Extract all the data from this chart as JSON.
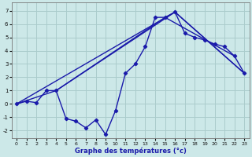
{
  "xlabel": "Graphe des températures (°c)",
  "bg_color": "#cce8e8",
  "grid_color": "#aacccc",
  "line_color": "#1a1aaa",
  "xlim": [
    -0.5,
    23.5
  ],
  "ylim": [
    -2.6,
    7.6
  ],
  "yticks": [
    -2,
    -1,
    0,
    1,
    2,
    3,
    4,
    5,
    6,
    7
  ],
  "xticks": [
    0,
    1,
    2,
    3,
    4,
    5,
    6,
    7,
    8,
    9,
    10,
    11,
    12,
    13,
    14,
    15,
    16,
    17,
    18,
    19,
    20,
    21,
    22,
    23
  ],
  "series_main": {
    "x": [
      0,
      1,
      2,
      3,
      4,
      5,
      6,
      7,
      8,
      9,
      10,
      11,
      12,
      13,
      14,
      15,
      16,
      17,
      18,
      19,
      20,
      21,
      22,
      23
    ],
    "y": [
      0.0,
      0.2,
      0.1,
      1.0,
      1.0,
      -1.1,
      -1.3,
      -1.8,
      -1.2,
      -2.3,
      -0.5,
      2.3,
      3.0,
      4.3,
      6.5,
      6.5,
      6.9,
      5.3,
      5.0,
      4.8,
      4.5,
      4.3,
      3.6,
      2.3
    ]
  },
  "series_lines": [
    {
      "x": [
        0,
        16,
        23
      ],
      "y": [
        0.0,
        6.9,
        2.3
      ]
    },
    {
      "x": [
        0,
        4,
        16,
        23
      ],
      "y": [
        0.0,
        1.0,
        6.9,
        2.3
      ]
    },
    {
      "x": [
        4,
        15,
        22
      ],
      "y": [
        1.0,
        6.5,
        3.6
      ]
    }
  ]
}
